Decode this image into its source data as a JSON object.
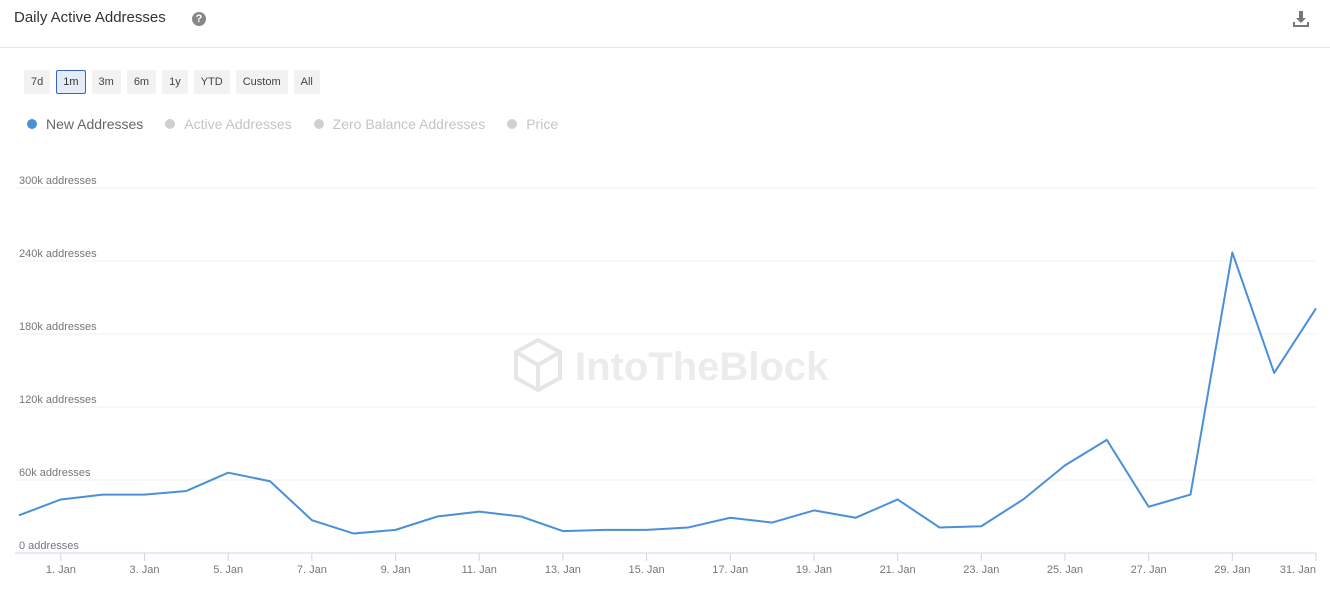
{
  "chart_data": {
    "type": "line",
    "title": "Daily Active Addresses",
    "range_buttons": [
      "7d",
      "1m",
      "3m",
      "6m",
      "1y",
      "YTD",
      "Custom",
      "All"
    ],
    "selected_range": "1m",
    "watermark": "IntoTheBlock",
    "categories": [
      null,
      "1. Jan",
      null,
      "3. Jan",
      null,
      "5. Jan",
      null,
      "7. Jan",
      null,
      "9. Jan",
      null,
      "11. Jan",
      null,
      "13. Jan",
      null,
      "15. Jan",
      null,
      "17. Jan",
      null,
      "19. Jan",
      null,
      "21. Jan",
      null,
      "23. Jan",
      null,
      "25. Jan",
      null,
      "27. Jan",
      null,
      "29. Jan",
      null,
      "31. Jan"
    ],
    "series": [
      {
        "name": "New Addresses",
        "color": "#4a90d9",
        "values": [
          31000,
          44000,
          48000,
          48000,
          51000,
          66000,
          59000,
          27000,
          16000,
          19000,
          30000,
          34000,
          30000,
          18000,
          19000,
          19000,
          21000,
          29000,
          25000,
          35000,
          29000,
          44000,
          21000,
          22000,
          44000,
          72000,
          93000,
          38000,
          48000,
          247000,
          148000,
          201000
        ]
      }
    ],
    "inactive_legend": [
      "Active Addresses",
      "Zero Balance Addresses",
      "Price"
    ],
    "ylim": [
      0,
      300000
    ],
    "yticks": [
      {
        "value": 0,
        "label": "0 addresses"
      },
      {
        "value": 60000,
        "label": "60k addresses"
      },
      {
        "value": 120000,
        "label": "120k addresses"
      },
      {
        "value": 180000,
        "label": "180k addresses"
      },
      {
        "value": 240000,
        "label": "240k addresses"
      },
      {
        "value": 300000,
        "label": "300k addresses"
      }
    ],
    "grid": true
  }
}
